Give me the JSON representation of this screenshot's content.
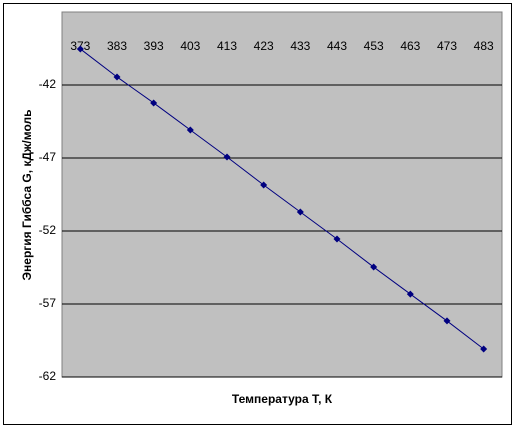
{
  "chart_data": {
    "type": "line",
    "x_label": "Температура Т, К",
    "y_label": "Энергия Гиббса G, кДж/моль",
    "categories": [
      "373",
      "383",
      "393",
      "403",
      "413",
      "423",
      "433",
      "443",
      "453",
      "463",
      "473",
      "483"
    ],
    "series": [
      {
        "color": "#000080",
        "values": [
          -39.53,
          -41.45,
          -43.23,
          -45.08,
          -46.93,
          -48.85,
          -50.7,
          -52.55,
          -54.47,
          -56.32,
          -58.16,
          -60.08
        ]
      }
    ],
    "ylim": [
      -62,
      -37
    ],
    "yticks": [
      -62,
      -57,
      -52,
      -47,
      -42
    ],
    "grid": true
  }
}
